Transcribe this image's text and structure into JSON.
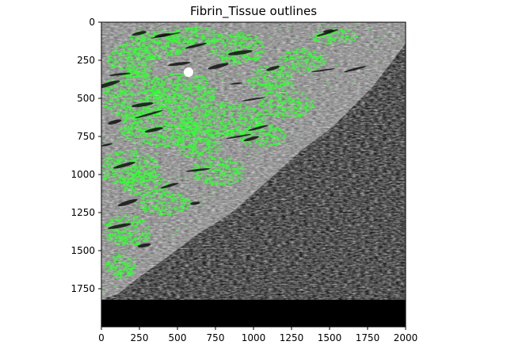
{
  "figure": {
    "title": "Fibrin_Tissue outlines",
    "image_extent": {
      "x": [
        0,
        2000
      ],
      "y": [
        2000,
        0
      ]
    },
    "x_ticks": [
      0,
      250,
      500,
      750,
      1000,
      1250,
      1500,
      1750,
      2000
    ],
    "y_ticks": [
      0,
      250,
      500,
      750,
      1000,
      1250,
      1500,
      1750
    ],
    "colors": {
      "background_region": "#000000",
      "tissue_gray": "#8a8a8a",
      "fibrin_outline": "#33ff33",
      "marker": "#ffffff"
    },
    "content": "grayscale tissue micrograph on the upper-left triangle, black lower-right region, bright green fibrin outline overlay"
  }
}
